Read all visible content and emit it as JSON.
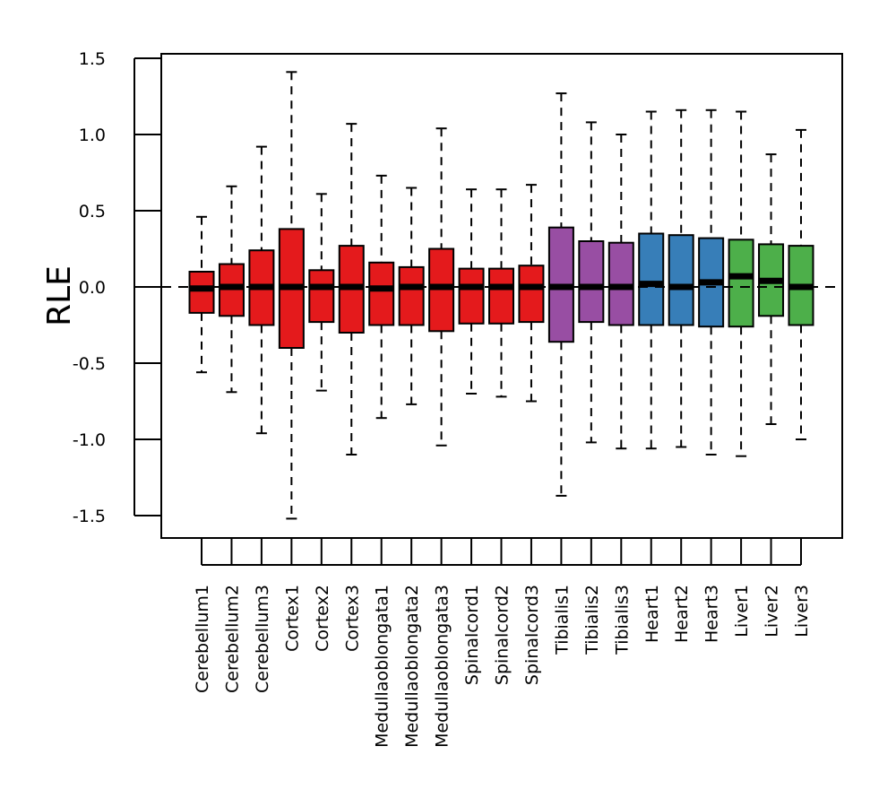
{
  "chart_data": {
    "type": "boxplot",
    "title": "",
    "xlabel": "",
    "ylabel": "RLE",
    "ylim": [
      -1.65,
      1.5
    ],
    "yticks": [
      -1.5,
      -1.0,
      -0.5,
      0.0,
      0.5,
      1.0,
      1.5
    ],
    "ytick_labels": [
      "-1.5",
      "-1.0",
      "-0.5",
      "0.0",
      "0.5",
      "1.0",
      "1.5"
    ],
    "reference_line": 0.0,
    "grid": false,
    "legend": "none",
    "colors": {
      "Cerebellum": "#E41A1C",
      "Cortex": "#E41A1C",
      "Medullaoblongata": "#E41A1C",
      "Spinalcord": "#E41A1C",
      "Tibialis": "#984EA3",
      "Heart": "#377EB8",
      "Liver": "#4DAF4A"
    },
    "boxes": [
      {
        "label": "Cerebellum1",
        "group": "Cerebellum",
        "lower_whisker": -0.56,
        "q1": -0.17,
        "median": -0.01,
        "q3": 0.1,
        "upper_whisker": 0.46
      },
      {
        "label": "Cerebellum2",
        "group": "Cerebellum",
        "lower_whisker": -0.69,
        "q1": -0.19,
        "median": 0.0,
        "q3": 0.15,
        "upper_whisker": 0.66
      },
      {
        "label": "Cerebellum3",
        "group": "Cerebellum",
        "lower_whisker": -0.96,
        "q1": -0.25,
        "median": 0.0,
        "q3": 0.24,
        "upper_whisker": 0.92
      },
      {
        "label": "Cortex1",
        "group": "Cortex",
        "lower_whisker": -1.52,
        "q1": -0.4,
        "median": 0.0,
        "q3": 0.38,
        "upper_whisker": 1.41
      },
      {
        "label": "Cortex2",
        "group": "Cortex",
        "lower_whisker": -0.68,
        "q1": -0.23,
        "median": 0.0,
        "q3": 0.11,
        "upper_whisker": 0.61
      },
      {
        "label": "Cortex3",
        "group": "Cortex",
        "lower_whisker": -1.1,
        "q1": -0.3,
        "median": 0.0,
        "q3": 0.27,
        "upper_whisker": 1.07
      },
      {
        "label": "Medullaoblongata1",
        "group": "Medullaoblongata",
        "lower_whisker": -0.86,
        "q1": -0.25,
        "median": -0.01,
        "q3": 0.16,
        "upper_whisker": 0.73
      },
      {
        "label": "Medullaoblongata2",
        "group": "Medullaoblongata",
        "lower_whisker": -0.77,
        "q1": -0.25,
        "median": 0.0,
        "q3": 0.13,
        "upper_whisker": 0.65
      },
      {
        "label": "Medullaoblongata3",
        "group": "Medullaoblongata",
        "lower_whisker": -1.04,
        "q1": -0.29,
        "median": 0.0,
        "q3": 0.25,
        "upper_whisker": 1.04
      },
      {
        "label": "Spinalcord1",
        "group": "Spinalcord",
        "lower_whisker": -0.7,
        "q1": -0.24,
        "median": 0.0,
        "q3": 0.12,
        "upper_whisker": 0.64
      },
      {
        "label": "Spinalcord2",
        "group": "Spinalcord",
        "lower_whisker": -0.72,
        "q1": -0.24,
        "median": 0.0,
        "q3": 0.12,
        "upper_whisker": 0.64
      },
      {
        "label": "Spinalcord3",
        "group": "Spinalcord",
        "lower_whisker": -0.75,
        "q1": -0.23,
        "median": 0.0,
        "q3": 0.14,
        "upper_whisker": 0.67
      },
      {
        "label": "Tibialis1",
        "group": "Tibialis",
        "lower_whisker": -1.37,
        "q1": -0.36,
        "median": 0.0,
        "q3": 0.39,
        "upper_whisker": 1.27
      },
      {
        "label": "Tibialis2",
        "group": "Tibialis",
        "lower_whisker": -1.02,
        "q1": -0.23,
        "median": 0.0,
        "q3": 0.3,
        "upper_whisker": 1.08
      },
      {
        "label": "Tibialis3",
        "group": "Tibialis",
        "lower_whisker": -1.06,
        "q1": -0.25,
        "median": 0.0,
        "q3": 0.29,
        "upper_whisker": 1.0
      },
      {
        "label": "Heart1",
        "group": "Heart",
        "lower_whisker": -1.06,
        "q1": -0.25,
        "median": 0.02,
        "q3": 0.35,
        "upper_whisker": 1.15
      },
      {
        "label": "Heart2",
        "group": "Heart",
        "lower_whisker": -1.05,
        "q1": -0.25,
        "median": 0.0,
        "q3": 0.34,
        "upper_whisker": 1.16
      },
      {
        "label": "Heart3",
        "group": "Heart",
        "lower_whisker": -1.1,
        "q1": -0.26,
        "median": 0.03,
        "q3": 0.32,
        "upper_whisker": 1.16
      },
      {
        "label": "Liver1",
        "group": "Liver",
        "lower_whisker": -1.11,
        "q1": -0.26,
        "median": 0.07,
        "q3": 0.31,
        "upper_whisker": 1.15
      },
      {
        "label": "Liver2",
        "group": "Liver",
        "lower_whisker": -0.9,
        "q1": -0.19,
        "median": 0.04,
        "q3": 0.28,
        "upper_whisker": 0.87
      },
      {
        "label": "Liver3",
        "group": "Liver",
        "lower_whisker": -1.0,
        "q1": -0.25,
        "median": 0.0,
        "q3": 0.27,
        "upper_whisker": 1.03
      }
    ]
  }
}
